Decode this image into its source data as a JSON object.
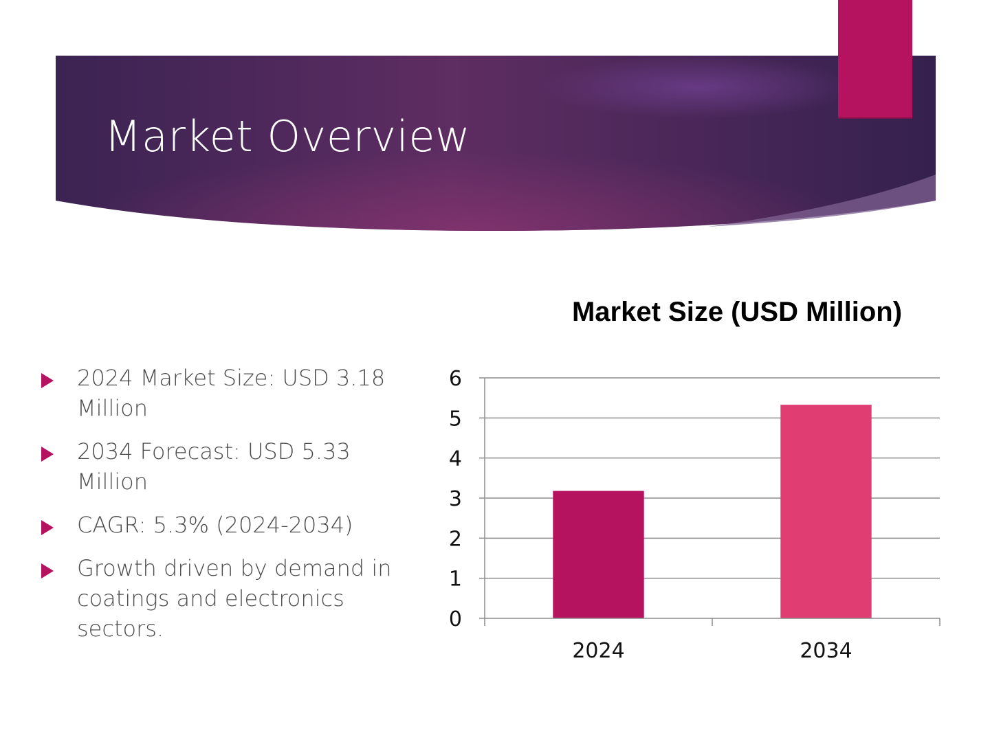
{
  "slide": {
    "title": "Market Overview",
    "bullets": [
      "2024 Market Size: USD 3.18 Million",
      "2034 Forecast: USD 5.33 Million",
      "CAGR: 5.3% (2024-2034)",
      "Growth driven by demand in coatings and electronics sectors."
    ],
    "colors": {
      "banner_dark": "#3a2150",
      "banner_mid": "#6b2f63",
      "accent": "#b5135f",
      "bar_2024": "#b5135f",
      "bar_2034": "#e03d72"
    }
  },
  "chart_data": {
    "type": "bar",
    "title": "Market Size (USD Million)",
    "categories": [
      "2024",
      "2034"
    ],
    "values": [
      3.18,
      5.33
    ],
    "ylim": [
      0,
      6
    ],
    "yticks": [
      "0",
      "1",
      "2",
      "3",
      "4",
      "5",
      "6"
    ],
    "grid": true,
    "legend": "none"
  }
}
